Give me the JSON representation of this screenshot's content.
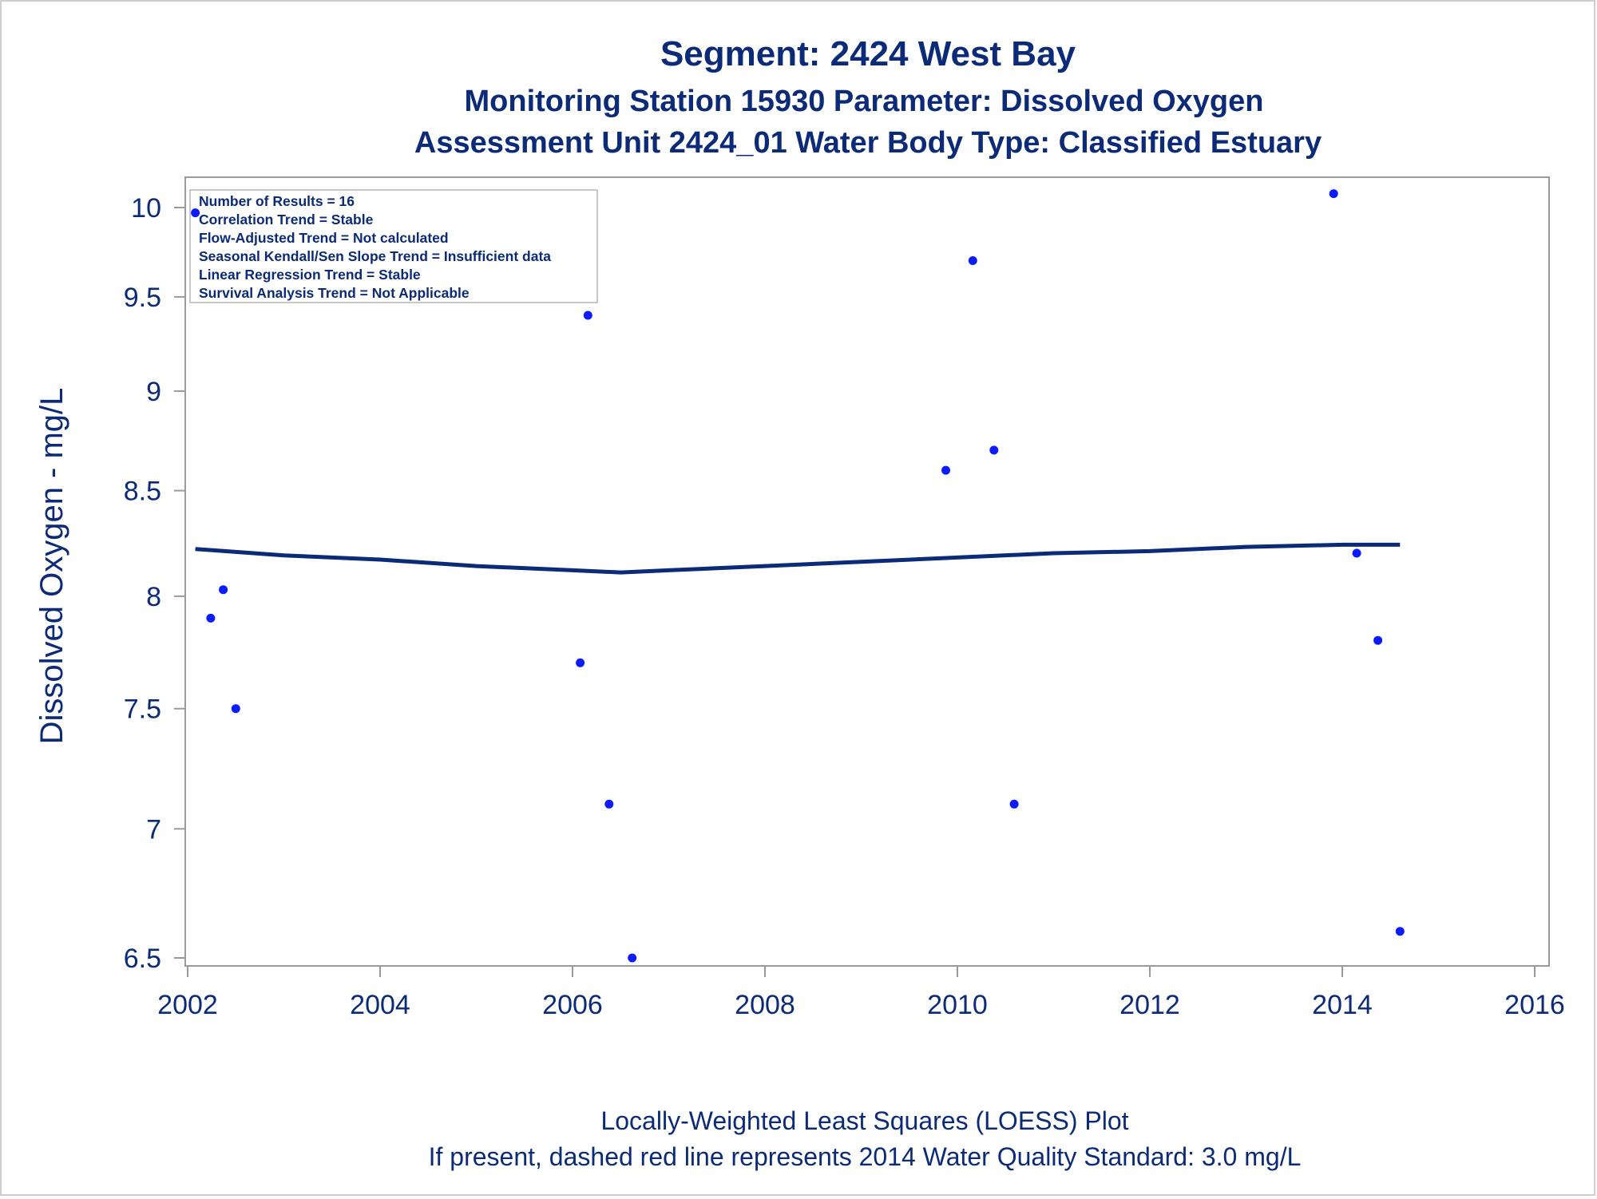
{
  "chart_data": {
    "type": "scatter",
    "title": "Segment: 2424  West Bay",
    "subtitle": "Monitoring Station 15930 Parameter: Dissolved Oxygen",
    "subtitle2": "Assessment Unit 2424_01   Water Body Type: Classified Estuary",
    "xlabel": "",
    "ylabel": "Dissolved Oxygen - mg/L",
    "x_ticks": [
      "2002",
      "2004",
      "2006",
      "2008",
      "2010",
      "2012",
      "2014",
      "2016"
    ],
    "y_ticks": [
      "6.5",
      "7",
      "7.5",
      "8",
      "8.5",
      "9",
      "9.5",
      "10"
    ],
    "xlim": [
      2002,
      2016
    ],
    "ylim": [
      6.5,
      10
    ],
    "y_scale": "log",
    "grid": false,
    "stats_box": [
      "Number of Results = 16",
      "Correlation Trend = Stable",
      "Flow-Adjusted Trend = Not calculated",
      "Seasonal Kendall/Sen Slope Trend = Insufficient data",
      "Linear Regression Trend = Stable",
      "Survival Analysis Trend = Not Applicable"
    ],
    "stats_box_placement": "top-left",
    "footnotes": [
      "Locally-Weighted Least Squares (LOESS) Plot",
      "If present, dashed red line represents 2014 Water Quality Standard: 3.0 mg/L"
    ],
    "points": [
      {
        "x": 2002.08,
        "y": 9.97
      },
      {
        "x": 2002.24,
        "y": 7.9
      },
      {
        "x": 2002.37,
        "y": 8.03
      },
      {
        "x": 2002.5,
        "y": 7.5
      },
      {
        "x": 2006.08,
        "y": 7.7
      },
      {
        "x": 2006.16,
        "y": 9.4
      },
      {
        "x": 2006.38,
        "y": 7.1
      },
      {
        "x": 2006.62,
        "y": 6.5
      },
      {
        "x": 2009.88,
        "y": 8.6
      },
      {
        "x": 2010.16,
        "y": 9.7
      },
      {
        "x": 2010.38,
        "y": 8.7
      },
      {
        "x": 2010.59,
        "y": 7.1
      },
      {
        "x": 2013.91,
        "y": 10.08
      },
      {
        "x": 2014.15,
        "y": 8.2
      },
      {
        "x": 2014.37,
        "y": 7.8
      },
      {
        "x": 2014.6,
        "y": 6.6
      }
    ],
    "loess": [
      {
        "x": 2002.08,
        "y": 8.22
      },
      {
        "x": 2003.0,
        "y": 8.19
      },
      {
        "x": 2004.0,
        "y": 8.17
      },
      {
        "x": 2005.0,
        "y": 8.14
      },
      {
        "x": 2006.0,
        "y": 8.12
      },
      {
        "x": 2006.5,
        "y": 8.11
      },
      {
        "x": 2007.0,
        "y": 8.12
      },
      {
        "x": 2008.0,
        "y": 8.14
      },
      {
        "x": 2009.0,
        "y": 8.16
      },
      {
        "x": 2010.0,
        "y": 8.18
      },
      {
        "x": 2011.0,
        "y": 8.2
      },
      {
        "x": 2012.0,
        "y": 8.21
      },
      {
        "x": 2013.0,
        "y": 8.23
      },
      {
        "x": 2014.0,
        "y": 8.24
      },
      {
        "x": 2014.6,
        "y": 8.24
      }
    ],
    "colors": {
      "text": "#0b2a78",
      "points": "#0b1bff",
      "loess_line": "#0b2a78",
      "axes": "#9a9a9a"
    }
  }
}
